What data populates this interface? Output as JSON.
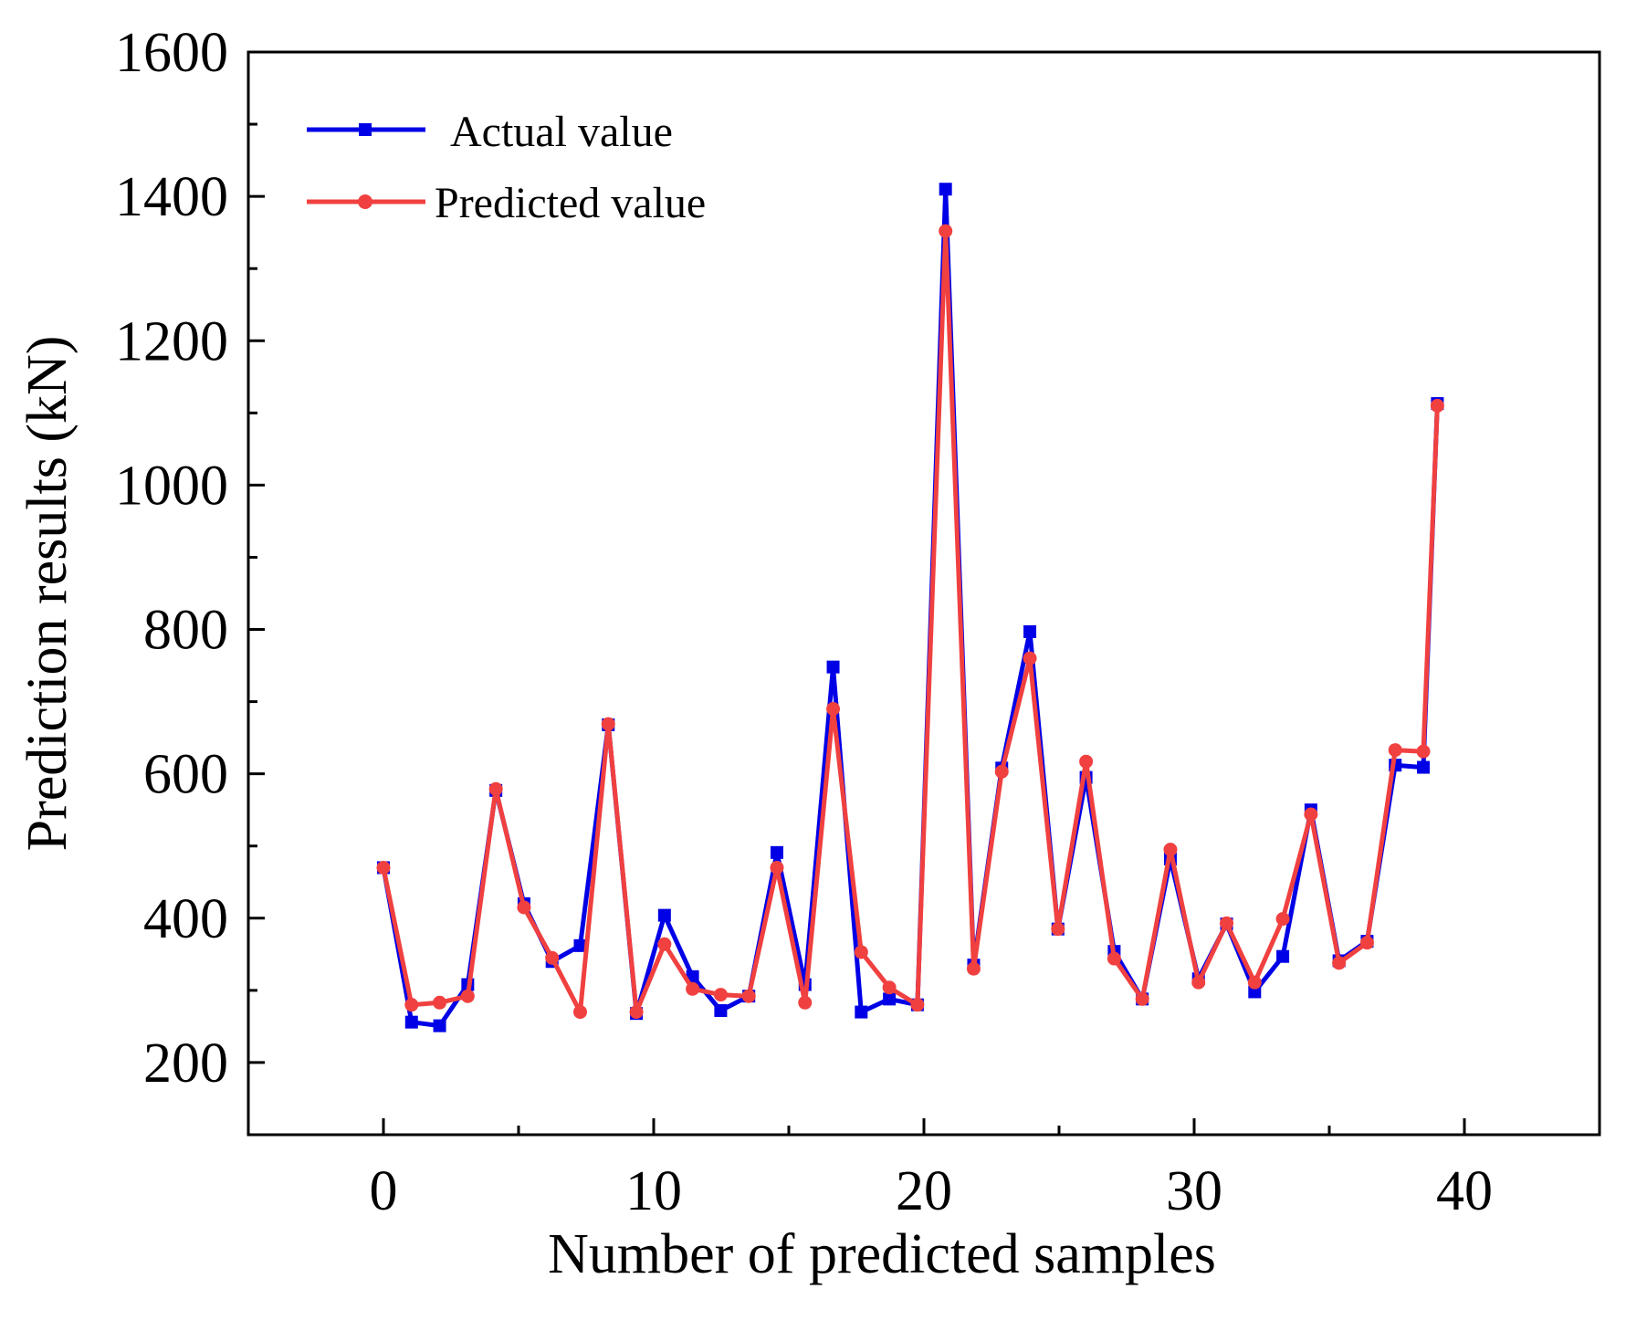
{
  "chart_data": {
    "type": "line",
    "title": "",
    "xlabel": "Number of predicted samples",
    "ylabel": "Prediction results (kN)",
    "xlim": [
      -5,
      45
    ],
    "ylim": [
      100,
      1600
    ],
    "xticks": [
      0,
      10,
      20,
      30,
      40
    ],
    "yticks": [
      200,
      400,
      600,
      800,
      1000,
      1200,
      1400,
      1600
    ],
    "x_minor_ticks": [
      5,
      15,
      25,
      35
    ],
    "y_minor_ticks": [
      300,
      500,
      700,
      900,
      1100,
      1300,
      1500
    ],
    "legend_position": "top-left",
    "x": [
      0,
      1.04,
      2.08,
      3.12,
      4.16,
      5.2,
      6.24,
      7.28,
      8.32,
      9.36,
      10.4,
      11.44,
      12.48,
      13.52,
      14.56,
      15.6,
      16.64,
      17.68,
      18.72,
      19.76,
      20.8,
      21.84,
      22.88,
      23.92,
      24.96,
      26.0,
      27.04,
      28.08,
      29.12,
      30.16,
      31.2,
      32.24,
      33.28,
      34.32,
      35.36,
      36.4,
      37.44,
      38.48,
      39.0
    ],
    "series": [
      {
        "name": "Actual value",
        "color": "#0000e6",
        "marker": "square",
        "values": [
          470,
          256,
          251,
          308,
          577,
          420,
          340,
          362,
          668,
          268,
          404,
          319,
          272,
          292,
          491,
          308,
          748,
          270,
          288,
          280,
          1410,
          335,
          608,
          797,
          385,
          595,
          354,
          288,
          482,
          316,
          392,
          298,
          347,
          550,
          341,
          368,
          612,
          609,
          1113
        ]
      },
      {
        "name": "Predicted value",
        "color": "#f04040",
        "marker": "circle",
        "values": [
          470,
          280,
          283,
          292,
          579,
          415,
          345,
          270,
          669,
          270,
          364,
          302,
          294,
          292,
          470,
          283,
          690,
          353,
          304,
          280,
          1352,
          330,
          603,
          760,
          385,
          617,
          344,
          288,
          495,
          311,
          393,
          311,
          399,
          544,
          338,
          366,
          633,
          631,
          1110
        ]
      }
    ]
  }
}
